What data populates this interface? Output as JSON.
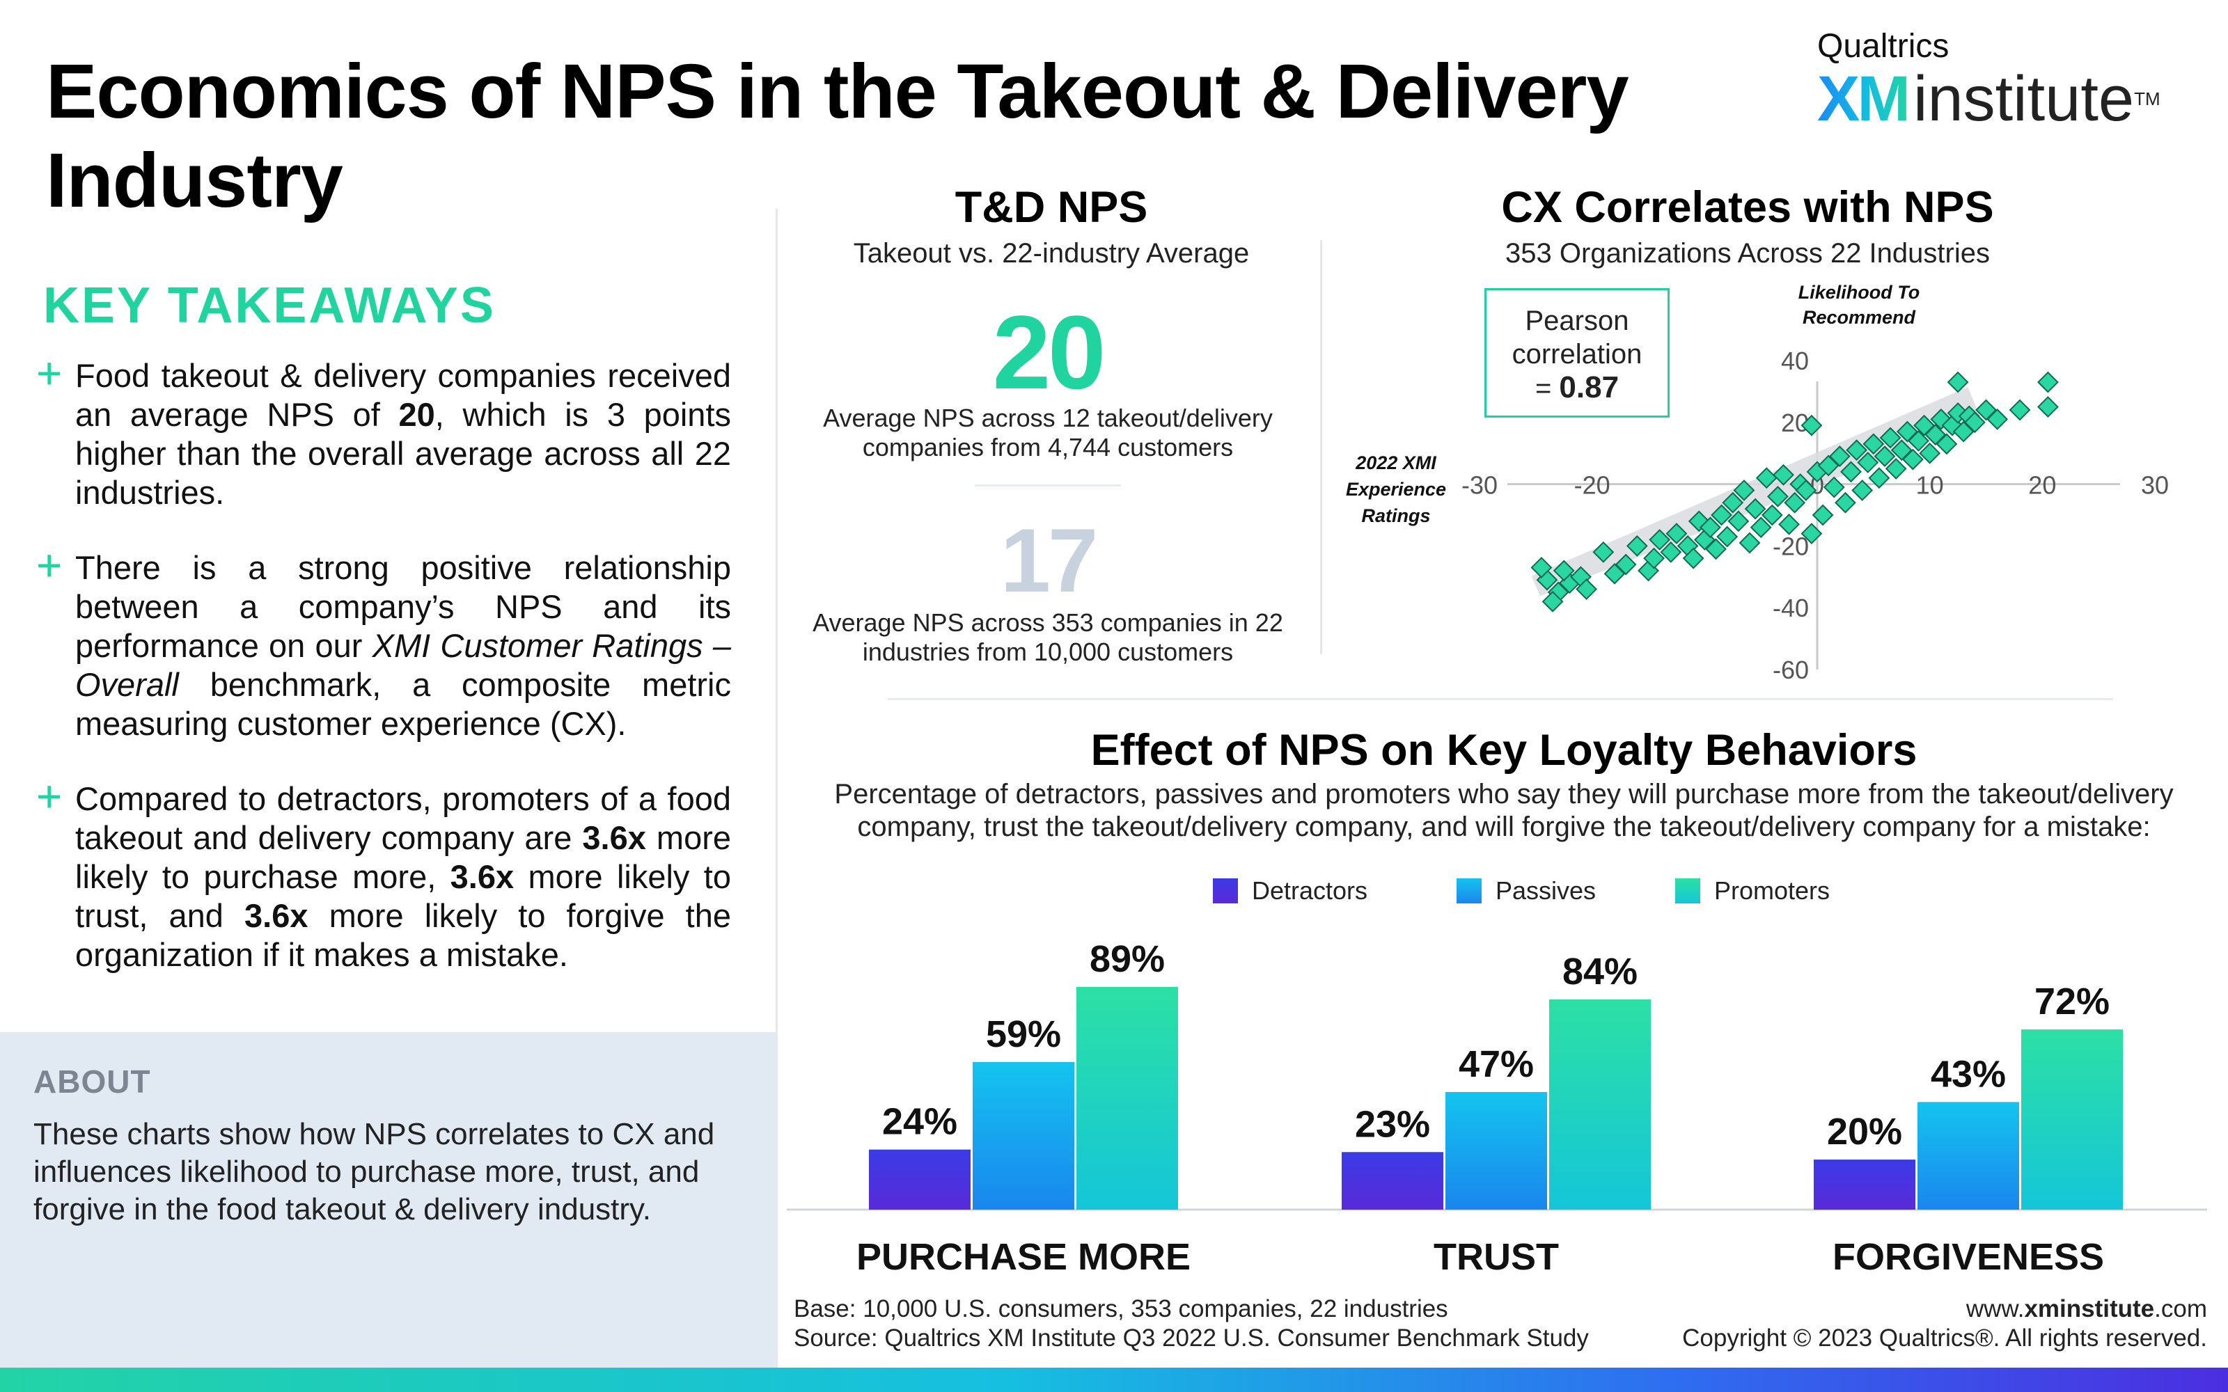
{
  "title": "Economics of NPS in the Takeout & Delivery Industry",
  "logo": {
    "small": "Qualtrics",
    "xm": "XM",
    "institute": "institute",
    "tm": "TM"
  },
  "key_takeaways": {
    "heading": "KEY TAKEAWAYS",
    "items": [
      {
        "p1": "Food takeout & delivery companies received an average NPS of ",
        "b1": "20",
        "p2": ", which is 3 points higher than the overall average across all 22 industries."
      },
      {
        "p1": "There is a strong positive relationship between a company’s NPS and its performance on our ",
        "i1": "XMI Customer Ratings – Overall",
        "p2": " benchmark, a composite metric measuring customer experience (CX)."
      },
      {
        "p1": "Compared to detractors, promoters of a food takeout and delivery company are ",
        "b1": "3.6x",
        "p2": " more likely to purchase more, ",
        "b2": "3.6x",
        "p3": " more likely to trust, and ",
        "b3": "3.6x",
        "p4": " more likely to forgive the organization if it makes a mistake."
      }
    ]
  },
  "about": {
    "heading": "ABOUT",
    "text": "These charts show how NPS correlates to CX and influences likelihood to purchase more, trust, and forgive in the food takeout & delivery industry."
  },
  "td_nps": {
    "title": "T&D NPS",
    "subtitle": "Takeout vs. 22-industry Average",
    "takeout_value": "20",
    "takeout_caption": "Average NPS across 12 takeout/delivery companies from 4,744 customers",
    "overall_value": "17",
    "overall_caption": "Average NPS across 353 companies in 22 industries from 10,000 customers"
  },
  "cx_section": {
    "title": "CX Correlates with NPS",
    "subtitle": "353 Organizations Across 22 Industries",
    "pearson_line1": "Pearson",
    "pearson_line2": "correlation",
    "pearson_prefix": "= ",
    "pearson_value": "0.87",
    "y_axis_label": "Likelihood To Recommend",
    "x_axis_label": "2022 XMI Experience Ratings"
  },
  "loyalty": {
    "title": "Effect of NPS on Key Loyalty Behaviors",
    "subtitle": "Percentage of detractors, passives and promoters who say they will purchase more from the takeout/delivery company, trust the takeout/delivery company, and will forgive the takeout/delivery company for a mistake:"
  },
  "footer": {
    "base": "Base: 10,000 U.S. consumers, 353 companies, 22 industries",
    "source": "Source: Qualtrics XM Institute Q3 2022 U.S. Consumer Benchmark Study",
    "url_pre": "www.",
    "url_bold": "xminstitute",
    "url_post": ".com",
    "copyright": "Copyright © 2023 Qualtrics®. All rights reserved."
  },
  "colors": {
    "teal": "#1fd49f",
    "detractors_top": "#3a3be6",
    "detractors_bottom": "#5a2ad8",
    "passives_top": "#14c4ee",
    "passives_bottom": "#1a86ee",
    "promoters_top": "#2ce0a4",
    "promoters_bottom": "#14c6d8",
    "scatter_fill": "#2ad6a2",
    "scatter_stroke": "#0d6b52"
  },
  "chart_data": [
    {
      "type": "scatter",
      "title": "CX Correlates with NPS",
      "subtitle": "353 Organizations Across 22 Industries",
      "xlabel": "2022 XMI Experience Ratings",
      "ylabel": "Likelihood To Recommend",
      "xlim": [
        -30,
        30
      ],
      "ylim": [
        -60,
        40
      ],
      "x_ticks": [
        -30,
        -20,
        0,
        10,
        20,
        30
      ],
      "x_tick_labels": [
        "-30",
        "-20",
        "0",
        "10",
        "20",
        "30"
      ],
      "y_ticks": [
        40,
        20,
        -20,
        -40,
        -60
      ],
      "y_tick_labels": [
        "40",
        "20",
        "-20",
        "-40",
        "-60"
      ],
      "correlation": 0.87,
      "grid": false,
      "trend_band": true,
      "points": [
        [
          -24,
          -31
        ],
        [
          -23,
          -35
        ],
        [
          -23.5,
          -38
        ],
        [
          -22,
          -32
        ],
        [
          -21,
          -30
        ],
        [
          -22.5,
          -28
        ],
        [
          -24.5,
          -27
        ],
        [
          -20.5,
          -34
        ],
        [
          -19,
          -22
        ],
        [
          -18,
          -29
        ],
        [
          -17,
          -26
        ],
        [
          -15,
          -28
        ],
        [
          -16,
          -20
        ],
        [
          -14,
          -18
        ],
        [
          -14.5,
          -24
        ],
        [
          -13,
          -22
        ],
        [
          -12.5,
          -16
        ],
        [
          -11.5,
          -20
        ],
        [
          -11,
          -24
        ],
        [
          -10.5,
          -12
        ],
        [
          -10,
          -18
        ],
        [
          -9.5,
          -14
        ],
        [
          -9,
          -21
        ],
        [
          -8.5,
          -10
        ],
        [
          -8,
          -17
        ],
        [
          -7.5,
          -6
        ],
        [
          -7,
          -12
        ],
        [
          -6.5,
          -2
        ],
        [
          -6,
          -19
        ],
        [
          -5.5,
          -8
        ],
        [
          -5,
          -14
        ],
        [
          -4.5,
          2
        ],
        [
          -4,
          -10
        ],
        [
          -3.5,
          -4
        ],
        [
          -3,
          3
        ],
        [
          -2.5,
          -13
        ],
        [
          -2,
          -6
        ],
        [
          -1.5,
          0
        ],
        [
          -1,
          -2
        ],
        [
          -0.5,
          -16
        ],
        [
          0,
          4
        ],
        [
          0.5,
          -10
        ],
        [
          1,
          6
        ],
        [
          1.5,
          -1
        ],
        [
          2,
          9
        ],
        [
          2.5,
          -6
        ],
        [
          3,
          4
        ],
        [
          3.5,
          11
        ],
        [
          4,
          -2
        ],
        [
          4.5,
          7
        ],
        [
          5,
          13
        ],
        [
          5.5,
          2
        ],
        [
          6,
          9
        ],
        [
          6.5,
          15
        ],
        [
          7,
          5
        ],
        [
          7.5,
          11
        ],
        [
          8,
          17
        ],
        [
          8.5,
          8
        ],
        [
          9,
          14
        ],
        [
          9.5,
          19
        ],
        [
          10,
          10
        ],
        [
          10.5,
          16
        ],
        [
          11,
          21
        ],
        [
          11.5,
          13
        ],
        [
          12,
          19
        ],
        [
          12.5,
          23
        ],
        [
          13,
          17
        ],
        [
          13.5,
          22
        ],
        [
          14,
          20
        ],
        [
          15,
          24
        ],
        [
          16,
          21
        ],
        [
          18,
          24
        ],
        [
          12.5,
          33
        ],
        [
          20.5,
          33
        ],
        [
          20.5,
          25
        ],
        [
          -0.5,
          19
        ]
      ]
    },
    {
      "type": "bar",
      "title": "Effect of NPS on Key Loyalty Behaviors",
      "categories": [
        "PURCHASE MORE",
        "TRUST",
        "FORGIVENESS"
      ],
      "series": [
        {
          "name": "Detractors",
          "values": [
            24,
            23,
            20
          ],
          "labels": [
            "24%",
            "23%",
            "20%"
          ]
        },
        {
          "name": "Passives",
          "values": [
            59,
            47,
            43
          ],
          "labels": [
            "59%",
            "47%",
            "43%"
          ]
        },
        {
          "name": "Promoters",
          "values": [
            89,
            84,
            72
          ],
          "labels": [
            "89%",
            "84%",
            "72%"
          ]
        }
      ],
      "ylim": [
        0,
        100
      ],
      "legend": "top"
    }
  ]
}
